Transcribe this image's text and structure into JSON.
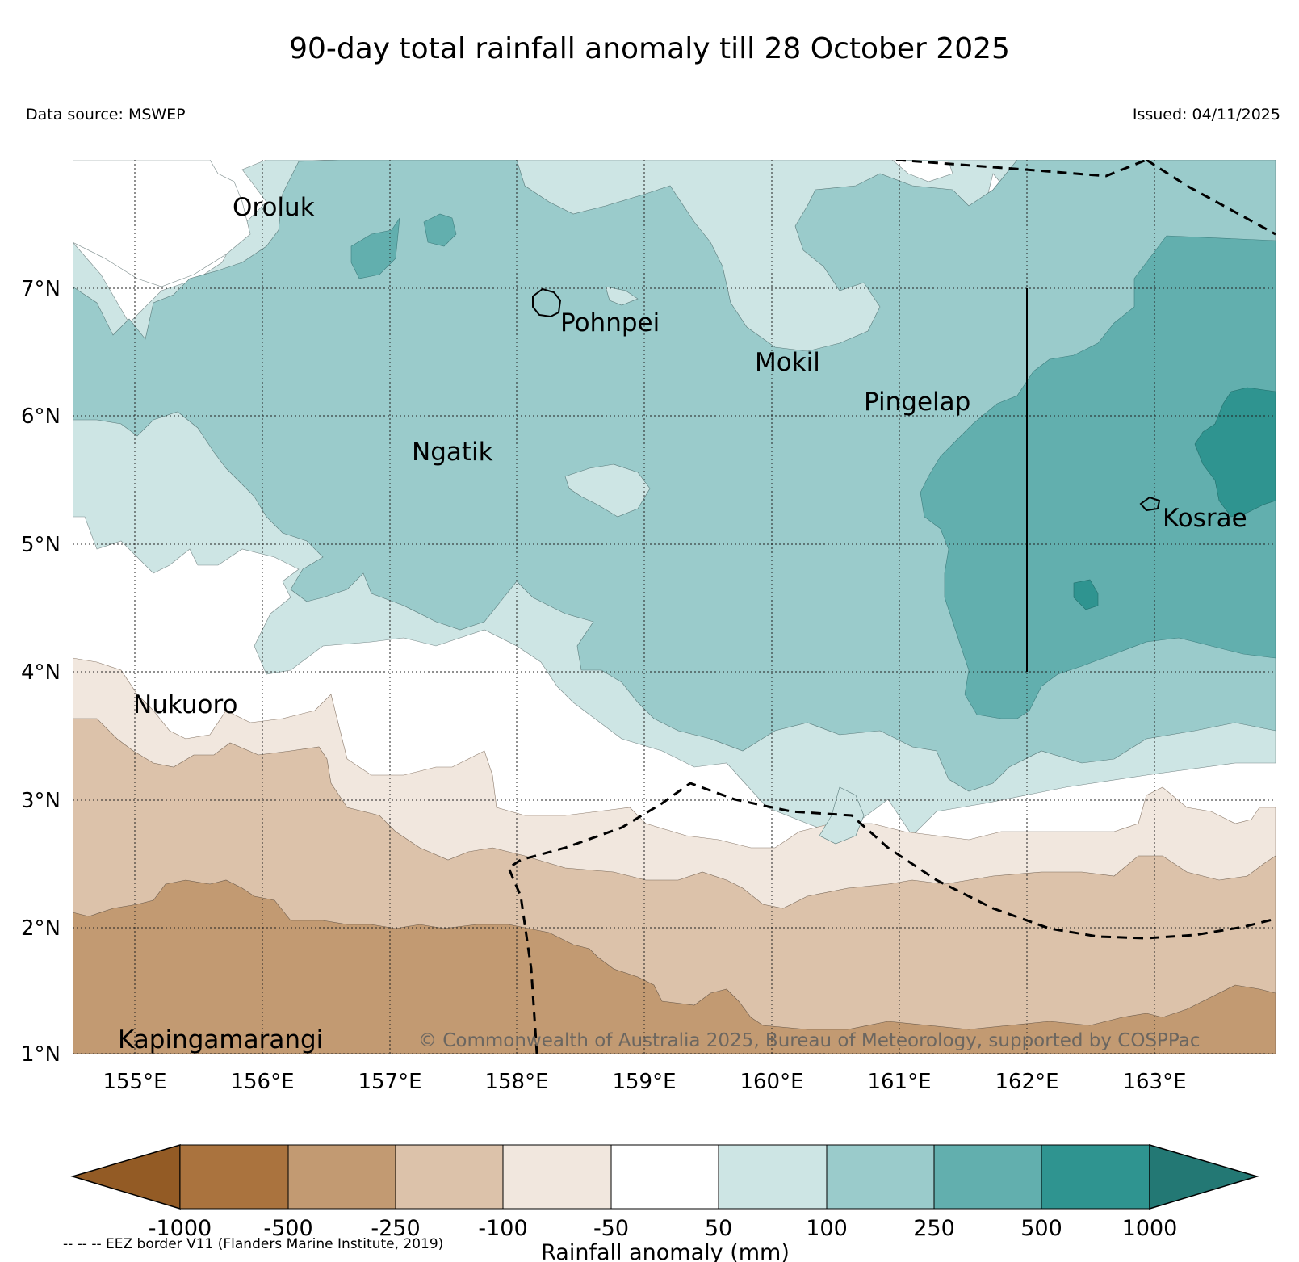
{
  "title": "90-day total rainfall anomaly till 28 October 2025",
  "source": "Data source: MSWEP",
  "issued": "Issued: 04/11/2025",
  "copyright": "© Commonwealth of Australia 2025, Bureau of Meteorology, supported by COSPPac",
  "eez_note": "-- -- -- EEZ border V11 (Flanders Marine Institute, 2019)",
  "map": {
    "lon_labels": [
      "155°E",
      "156°E",
      "157°E",
      "158°E",
      "159°E",
      "160°E",
      "161°E",
      "162°E",
      "163°E"
    ],
    "lat_labels": [
      "7°N",
      "6°N",
      "5°N",
      "4°N",
      "3°N",
      "2°N",
      "1°N"
    ],
    "places": [
      "Oroluk",
      "Pohnpei",
      "Mokil",
      "Pingelap",
      "Ngatik",
      "Kosrae",
      "Nukuoro",
      "Kapingamarangi"
    ]
  },
  "colorbar": {
    "label": "Rainfall anomaly (mm)",
    "ticks": [
      "-1000",
      "-500",
      "-250",
      "-100",
      "-50",
      "50",
      "100",
      "250",
      "500",
      "1000"
    ],
    "colors": [
      "#935b25",
      "#aa733e",
      "#c29a72",
      "#dcc2aa",
      "#f1e7de",
      "#ffffff",
      "#cde5e4",
      "#9acbcb",
      "#62afae",
      "#2f9490",
      "#237874"
    ]
  },
  "colors": {
    "wet1": "#cde5e4",
    "wet2": "#9acbcb",
    "wet3": "#62afae",
    "wet4": "#2f9490",
    "dry1": "#f1e7de",
    "dry2": "#dcc2aa",
    "dry3": "#c29a72"
  }
}
